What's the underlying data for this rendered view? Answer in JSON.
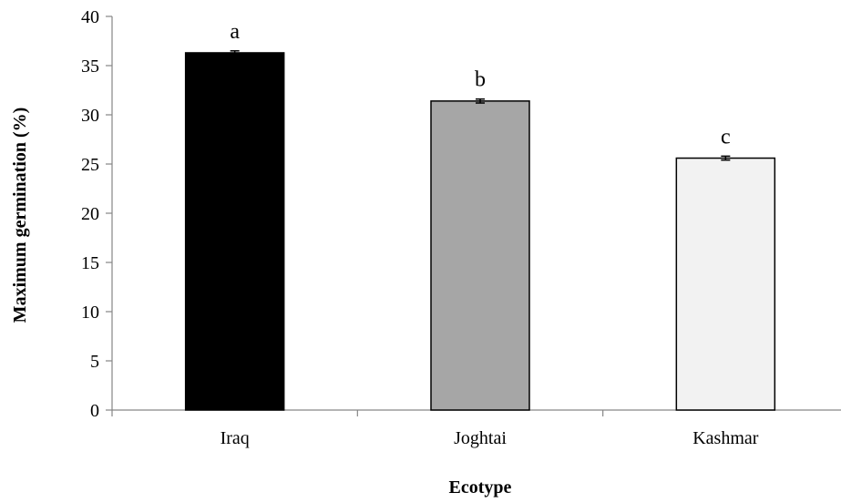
{
  "chart_data": {
    "type": "bar",
    "title": "",
    "xlabel": "Ecotype",
    "ylabel": "Maximum germination (%)",
    "ylim": [
      0,
      40
    ],
    "y_ticks": [
      0,
      5,
      10,
      15,
      20,
      25,
      30,
      35,
      40
    ],
    "categories": [
      "Iraq",
      "Joghtai",
      "Kashmar"
    ],
    "values": [
      36.3,
      31.4,
      25.6
    ],
    "errors": [
      0.2,
      0.2,
      0.2
    ],
    "significance_letters": [
      "a",
      "b",
      "c"
    ],
    "bar_colors": [
      "#000000",
      "#a6a6a6",
      "#f2f2f2"
    ],
    "bar_edge_color": "#000000",
    "grid": false,
    "legend": "none"
  }
}
